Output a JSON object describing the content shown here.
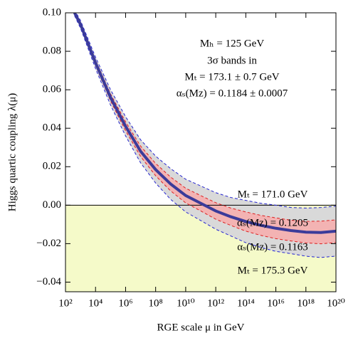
{
  "chart_data": {
    "type": "line",
    "xlabel": "RGE scale μ in GeV",
    "ylabel": "Higgs quartic coupling λ(μ)",
    "annotations": [
      "Mₕ = 125 GeV",
      "3σ bands in",
      "Mₜ = 173.1 ± 0.7 GeV",
      "αₛ(Mᴢ) = 0.1184 ± 0.0007"
    ],
    "x_log": true,
    "xlim": [
      100,
      1e+20
    ],
    "xticks": [
      {
        "value": 100.0,
        "label": "10²"
      },
      {
        "value": 10000.0,
        "label": "10⁴"
      },
      {
        "value": 1000000.0,
        "label": "10⁶"
      },
      {
        "value": 100000000.0,
        "label": "10⁸"
      },
      {
        "value": 10000000000.0,
        "label": "10¹⁰"
      },
      {
        "value": 1000000000000.0,
        "label": "10¹²"
      },
      {
        "value": 100000000000000.0,
        "label": "10¹⁴"
      },
      {
        "value": 1e+16,
        "label": "10¹⁶"
      },
      {
        "value": 1e+18,
        "label": "10¹⁸"
      },
      {
        "value": 1e+20,
        "label": "10²⁰"
      }
    ],
    "ylim": [
      -0.045,
      0.1
    ],
    "yticks": [
      {
        "value": -0.04,
        "label": "−0.04"
      },
      {
        "value": -0.02,
        "label": "−0.02"
      },
      {
        "value": 0,
        "label": "0.00"
      },
      0.02,
      0.04,
      0.06,
      0.08,
      {
        "value": 0.1,
        "label": "0.10"
      }
    ],
    "negative_region_color": "#f5fac9",
    "x": [
      400,
      1000.0,
      10000.0,
      100000.0,
      1000000.0,
      10000000.0,
      100000000.0,
      1000000000.0,
      10000000000.0,
      100000000000.0,
      1000000000000.0,
      10000000000000.0,
      100000000000000.0,
      1000000000000000.0,
      1e+16,
      1e+17,
      1e+18,
      1e+19,
      1e+20
    ],
    "series": [
      {
        "color": "#3b3b9a",
        "width": 4,
        "values": [
          0.1,
          0.094,
          0.074,
          0.056,
          0.041,
          0.028,
          0.0185,
          0.011,
          0.005,
          0.001,
          -0.003,
          -0.006,
          -0.0085,
          -0.0105,
          -0.012,
          -0.0132,
          -0.014,
          -0.0142,
          -0.0135
        ]
      },
      {
        "name": "Mₜ = 171.0 GeV",
        "color": "#2424d0",
        "dashed": true,
        "fill": "#d9d9d9",
        "values": [
          0.1015,
          0.096,
          0.077,
          0.06,
          0.046,
          0.034,
          0.0255,
          0.019,
          0.0135,
          0.01,
          0.0065,
          0.004,
          0.0025,
          0.001,
          0,
          -0.0012,
          -0.0015,
          -0.0012,
          -0.0005
        ]
      },
      {
        "name": "Mₜ = 175.3 GeV",
        "color": "#2424d0",
        "dashed": true,
        "values": [
          0.0985,
          0.092,
          0.071,
          0.052,
          0.036,
          0.022,
          0.0115,
          0.003,
          -0.0035,
          -0.008,
          -0.0125,
          -0.016,
          -0.0195,
          -0.022,
          -0.024,
          -0.0252,
          -0.0265,
          -0.0272,
          -0.0265
        ]
      },
      {
        "name": "αₛ(Mᴢ) = 0.1205",
        "color": "#dd2020",
        "dashed": true,
        "fill": "#f3b3b3",
        "values": [
          0.1007,
          0.095,
          0.0754,
          0.0578,
          0.0433,
          0.0307,
          0.0217,
          0.0146,
          0.0088,
          0.005,
          0.0013,
          -0.0015,
          -0.0035,
          -0.0053,
          -0.0066,
          -0.0078,
          -0.0084,
          -0.0083,
          -0.0076
        ]
      },
      {
        "name": "αₛ(Mᴢ) = 0.1163",
        "color": "#dd2020",
        "dashed": true,
        "values": [
          0.0993,
          0.093,
          0.0726,
          0.0542,
          0.0387,
          0.0253,
          0.0153,
          0.0074,
          0.0012,
          -0.003,
          -0.0073,
          -0.0105,
          -0.0135,
          -0.0157,
          -0.0174,
          -0.0186,
          -0.0196,
          -0.0201,
          -0.0194
        ]
      }
    ]
  }
}
